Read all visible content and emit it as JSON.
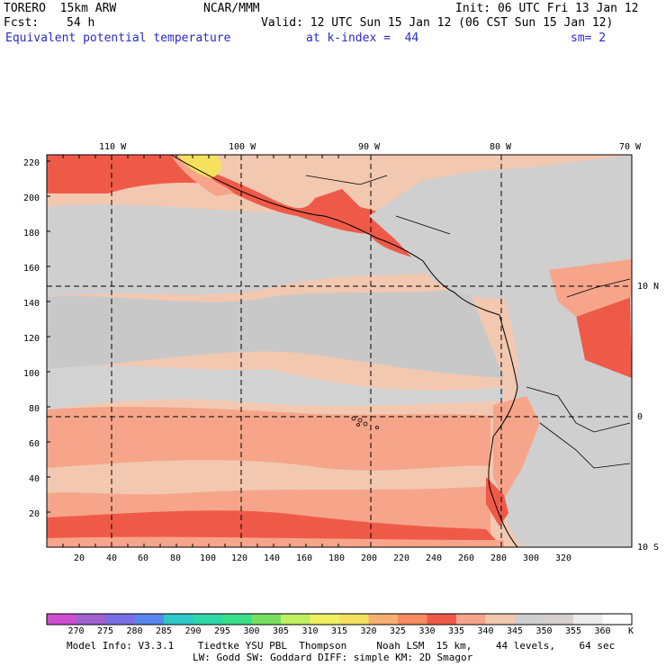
{
  "header": {
    "model": "TORERO  15km ARW",
    "org": "NCAR/MMM",
    "init": "Init: 06 UTC Fri 13 Jan 12",
    "fcst_label": "Fcst:",
    "fcst_value": "54 h",
    "valid": "Valid: 12 UTC Sun 15 Jan 12 (06 CST Sun 15 Jan 12)",
    "field": "Equivalent potential temperature",
    "level": "at k-index =  44",
    "smooth": "sm= 2"
  },
  "map": {
    "lon_labels": [
      "110 W",
      "100 W",
      "90 W",
      "80 W",
      "70 W"
    ],
    "lat_labels": [
      "10 N",
      "0",
      "10 S"
    ],
    "y_ticks": [
      "220",
      "200",
      "180",
      "160",
      "140",
      "120",
      "100",
      "80",
      "60",
      "40",
      "20"
    ],
    "x_ticks": [
      "20",
      "40",
      "60",
      "80",
      "100",
      "120",
      "140",
      "160",
      "180",
      "200",
      "220",
      "240",
      "260",
      "280",
      "300",
      "320"
    ],
    "colors": {
      "warm_peach": "#f2c8b0",
      "salmon": "#f6a58a",
      "red": "#ef5a48",
      "gray": "#cfcfcf",
      "gray_dark": "#c4c4c4",
      "yellow": "#f5e15e"
    }
  },
  "legend": {
    "labels": [
      "270",
      "275",
      "280",
      "285",
      "290",
      "295",
      "300",
      "305",
      "310",
      "315",
      "320",
      "325",
      "330",
      "335",
      "340",
      "345",
      "350",
      "355",
      "360"
    ],
    "unit": "K",
    "colors": [
      "#d04dd0",
      "#a060d0",
      "#7a6ee8",
      "#5a86f0",
      "#2ec8c8",
      "#2ed8a8",
      "#3ae08a",
      "#78e060",
      "#c0f060",
      "#f0f060",
      "#f5e15e",
      "#f6b070",
      "#f78a60",
      "#ef5a48",
      "#f6a58a",
      "#f2c8b0",
      "#cfcfcf",
      "#d8d0d0",
      "#ececec",
      "#ffffff"
    ]
  },
  "footer": {
    "line1": "Model Info: V3.3.1    Tiedtke YSU PBL  Thompson     Noah LSM  15 km,    44 levels,    64 sec",
    "line2": "LW: Godd SW: Goddard DIFF: simple KM: 2D Smagor"
  }
}
